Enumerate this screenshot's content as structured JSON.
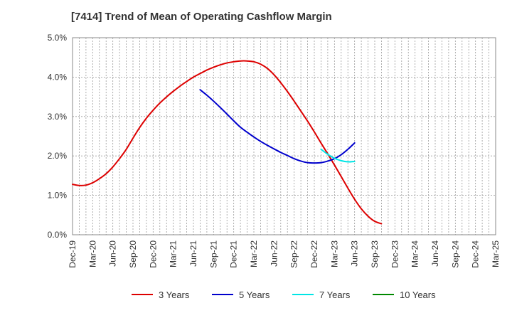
{
  "chart_data": {
    "type": "line",
    "title": "[7414]  Trend of Mean of Operating Cashflow Margin",
    "xlabel": "",
    "ylabel": "",
    "ylim": [
      0.0,
      5.0
    ],
    "y_ticks": [
      "0.0%",
      "1.0%",
      "2.0%",
      "3.0%",
      "4.0%",
      "5.0%"
    ],
    "x_ticks": [
      "Dec-19",
      "Mar-20",
      "Jun-20",
      "Sep-20",
      "Dec-20",
      "Mar-21",
      "Jun-21",
      "Sep-21",
      "Dec-21",
      "Mar-22",
      "Jun-22",
      "Sep-22",
      "Dec-22",
      "Mar-23",
      "Jun-23",
      "Sep-23",
      "Dec-23",
      "Mar-24",
      "Jun-24",
      "Sep-24",
      "Dec-24",
      "Mar-25"
    ],
    "legend_position": "bottom",
    "series": [
      {
        "name": "3 Years",
        "color": "#dd0000",
        "points": [
          [
            0,
            1.28
          ],
          [
            0.33,
            1.25
          ],
          [
            0.67,
            1.26
          ],
          [
            1,
            1.32
          ],
          [
            1.33,
            1.42
          ],
          [
            1.67,
            1.55
          ],
          [
            2,
            1.72
          ],
          [
            2.33,
            1.93
          ],
          [
            2.67,
            2.17
          ],
          [
            3,
            2.45
          ],
          [
            3.33,
            2.72
          ],
          [
            3.67,
            2.96
          ],
          [
            4,
            3.16
          ],
          [
            4.33,
            3.34
          ],
          [
            4.67,
            3.5
          ],
          [
            5,
            3.64
          ],
          [
            5.33,
            3.77
          ],
          [
            5.67,
            3.89
          ],
          [
            6,
            4.0
          ],
          [
            6.33,
            4.09
          ],
          [
            6.67,
            4.18
          ],
          [
            7,
            4.25
          ],
          [
            7.33,
            4.31
          ],
          [
            7.67,
            4.36
          ],
          [
            8,
            4.39
          ],
          [
            8.33,
            4.41
          ],
          [
            8.67,
            4.41
          ],
          [
            9,
            4.39
          ],
          [
            9.33,
            4.33
          ],
          [
            9.67,
            4.22
          ],
          [
            10,
            4.06
          ],
          [
            10.33,
            3.86
          ],
          [
            10.67,
            3.63
          ],
          [
            11,
            3.39
          ],
          [
            11.33,
            3.14
          ],
          [
            11.67,
            2.88
          ],
          [
            12,
            2.61
          ],
          [
            12.33,
            2.33
          ],
          [
            12.67,
            2.05
          ],
          [
            13,
            1.77
          ],
          [
            13.33,
            1.48
          ],
          [
            13.67,
            1.18
          ],
          [
            14,
            0.9
          ],
          [
            14.33,
            0.66
          ],
          [
            14.67,
            0.47
          ],
          [
            15,
            0.34
          ],
          [
            15.33,
            0.28
          ]
        ]
      },
      {
        "name": "5 Years",
        "color": "#0000cc",
        "points": [
          [
            6.33,
            3.68
          ],
          [
            6.67,
            3.54
          ],
          [
            7,
            3.39
          ],
          [
            7.33,
            3.23
          ],
          [
            7.67,
            3.06
          ],
          [
            8,
            2.89
          ],
          [
            8.33,
            2.73
          ],
          [
            8.67,
            2.6
          ],
          [
            9,
            2.48
          ],
          [
            9.33,
            2.37
          ],
          [
            9.67,
            2.27
          ],
          [
            10,
            2.18
          ],
          [
            10.33,
            2.09
          ],
          [
            10.67,
            2.01
          ],
          [
            11,
            1.93
          ],
          [
            11.33,
            1.87
          ],
          [
            11.67,
            1.83
          ],
          [
            12,
            1.82
          ],
          [
            12.33,
            1.83
          ],
          [
            12.67,
            1.87
          ],
          [
            13,
            1.93
          ],
          [
            13.33,
            2.03
          ],
          [
            13.67,
            2.17
          ],
          [
            14,
            2.33
          ]
        ]
      },
      {
        "name": "7 Years",
        "color": "#00e5e5",
        "points": [
          [
            12.33,
            2.17
          ],
          [
            12.67,
            2.04
          ],
          [
            13,
            1.94
          ],
          [
            13.33,
            1.88
          ],
          [
            13.67,
            1.85
          ],
          [
            14,
            1.86
          ]
        ]
      },
      {
        "name": "10 Years",
        "color": "#008800",
        "points": []
      }
    ]
  }
}
